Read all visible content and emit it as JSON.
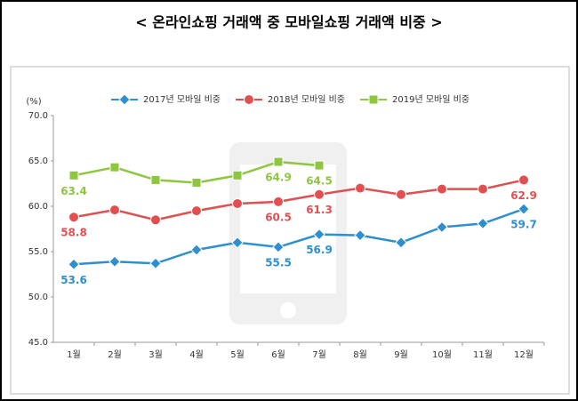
{
  "chart_data": {
    "type": "line",
    "title": "< 온라인쇼핑 거래액 중 모바일쇼핑 거래액 비중 >",
    "y_label": "(%)",
    "categories": [
      "1월",
      "2월",
      "3월",
      "4월",
      "5월",
      "6월",
      "7월",
      "8월",
      "9월",
      "10월",
      "11월",
      "12월"
    ],
    "series": [
      {
        "name": "2017년 모바일 비중",
        "color": "#2e8fd0",
        "marker": "diamond",
        "values": [
          53.6,
          53.9,
          53.7,
          55.2,
          56.0,
          55.5,
          56.9,
          56.8,
          56.0,
          57.7,
          58.1,
          59.7
        ],
        "value_labels": [
          "53.6",
          null,
          null,
          null,
          null,
          "55.5",
          "56.9",
          null,
          null,
          null,
          null,
          "59.7"
        ]
      },
      {
        "name": "2018년 모바일 비중",
        "color": "#e05050",
        "marker": "circle",
        "values": [
          58.8,
          59.6,
          58.5,
          59.5,
          60.3,
          60.5,
          61.3,
          62.0,
          61.3,
          61.9,
          61.9,
          62.9
        ],
        "value_labels": [
          "58.8",
          null,
          null,
          null,
          null,
          "60.5",
          "61.3",
          null,
          null,
          null,
          null,
          "62.9"
        ]
      },
      {
        "name": "2019년 모바일 비중",
        "color": "#8dc63f",
        "marker": "square",
        "values": [
          63.4,
          64.3,
          62.9,
          62.6,
          63.4,
          64.9,
          64.5,
          null,
          null,
          null,
          null,
          null
        ],
        "value_labels": [
          "63.4",
          null,
          null,
          null,
          null,
          "64.9",
          "64.5",
          null,
          null,
          null,
          null,
          null
        ]
      }
    ],
    "ylim": [
      45,
      70
    ],
    "yticks": [
      {
        "value": 45,
        "label": "45.0"
      },
      {
        "value": 50,
        "label": "50.0"
      },
      {
        "value": 55,
        "label": "55.0"
      },
      {
        "value": 60,
        "label": "60.0"
      },
      {
        "value": 65,
        "label": "65.0"
      },
      {
        "value": 70,
        "label": "70.0"
      }
    ],
    "grid": false,
    "legend": "top"
  }
}
